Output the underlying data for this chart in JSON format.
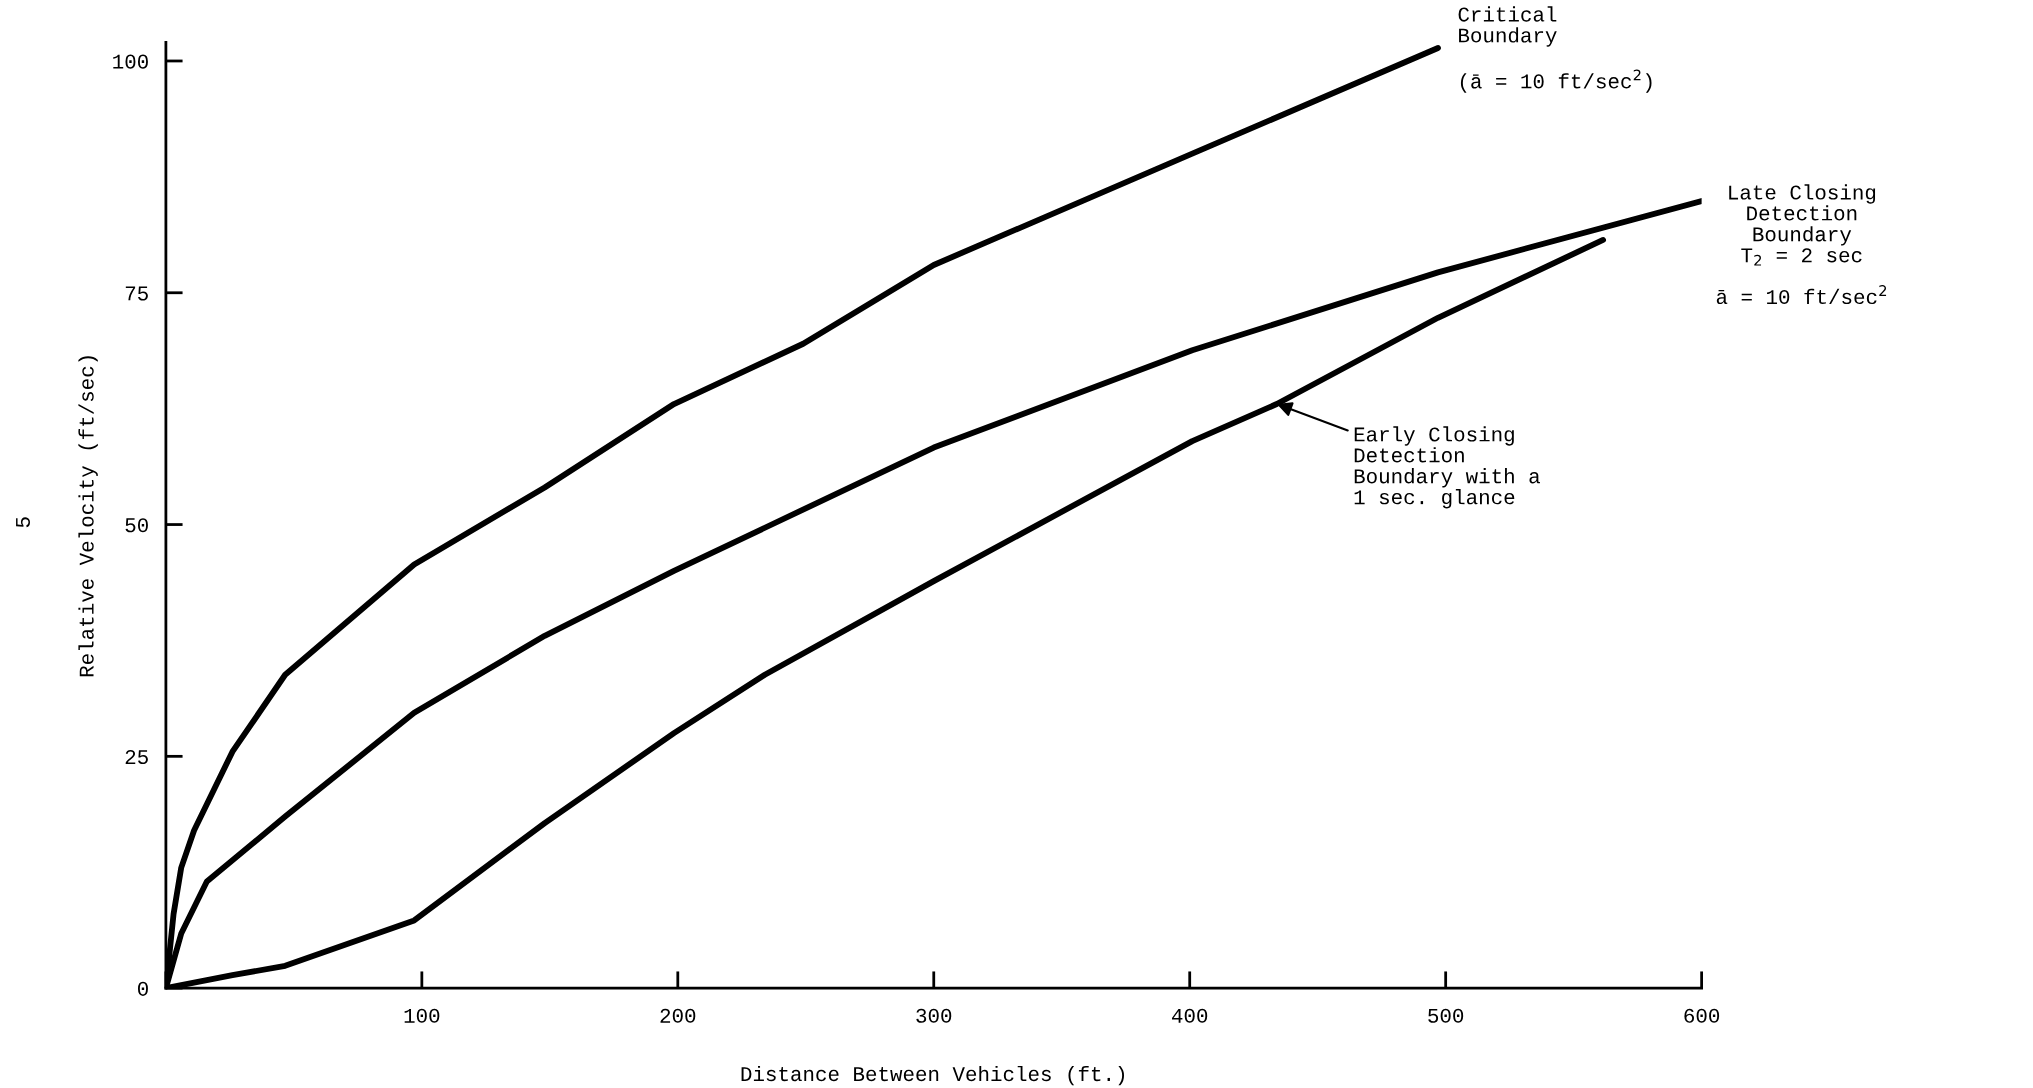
{
  "chart_data": {
    "type": "line",
    "xlabel": "Distance Between Vehicles (ft.)",
    "ylabel": "Relative Velocity (ft/sec)",
    "xlim": [
      0,
      600
    ],
    "xticks": [
      {
        "value": 0,
        "label": null
      },
      100,
      200,
      300,
      400,
      500,
      600
    ],
    "ylim": [
      0,
      102
    ],
    "yticks": [
      0,
      25,
      50,
      75,
      100
    ],
    "grid": false,
    "legend": false,
    "marker": "none",
    "line_style": "solid",
    "series": [
      {
        "name": "Critical\nBoundary\n\n(ā = 10 ft/sec$^{2}$)",
        "color": "#000000",
        "x": [
          0,
          3,
          6,
          11,
          26,
          46.6,
          97,
          148,
          198.5,
          249,
          300,
          401,
          497
        ],
        "values": [
          0,
          8,
          13,
          17,
          25.5,
          33.8,
          45.7,
          54,
          63,
          69.5,
          78,
          90,
          101.4
        ]
      },
      {
        "name": "Late Closing\nDetection\nBoundary\nT$_{2}$ = 2 sec\n\nā = 10 ft/sec$^{2}$",
        "color": "#000000",
        "x": [
          0,
          6,
          16,
          46.6,
          97,
          148,
          198.5,
          300,
          401,
          497,
          600
        ],
        "values": [
          0,
          5.9,
          11.5,
          18.5,
          29.7,
          38,
          45,
          58.3,
          68.8,
          77.2,
          84.9
        ]
      },
      {
        "color": "#000000",
        "x": [
          0,
          26,
          46.6,
          97,
          148,
          198.5,
          234,
          300,
          401,
          434,
          497,
          561.5
        ],
        "values": [
          0,
          1.4,
          2.4,
          7.3,
          17.8,
          27.5,
          33.8,
          43.9,
          59,
          63,
          72.3,
          80.7
        ]
      }
    ],
    "annotations": [
      "5",
      {
        "text": "Early Closing\nDetection\nBoundary with a\n1 sec. glance",
        "x": 434,
        "y": 63
      }
    ]
  }
}
